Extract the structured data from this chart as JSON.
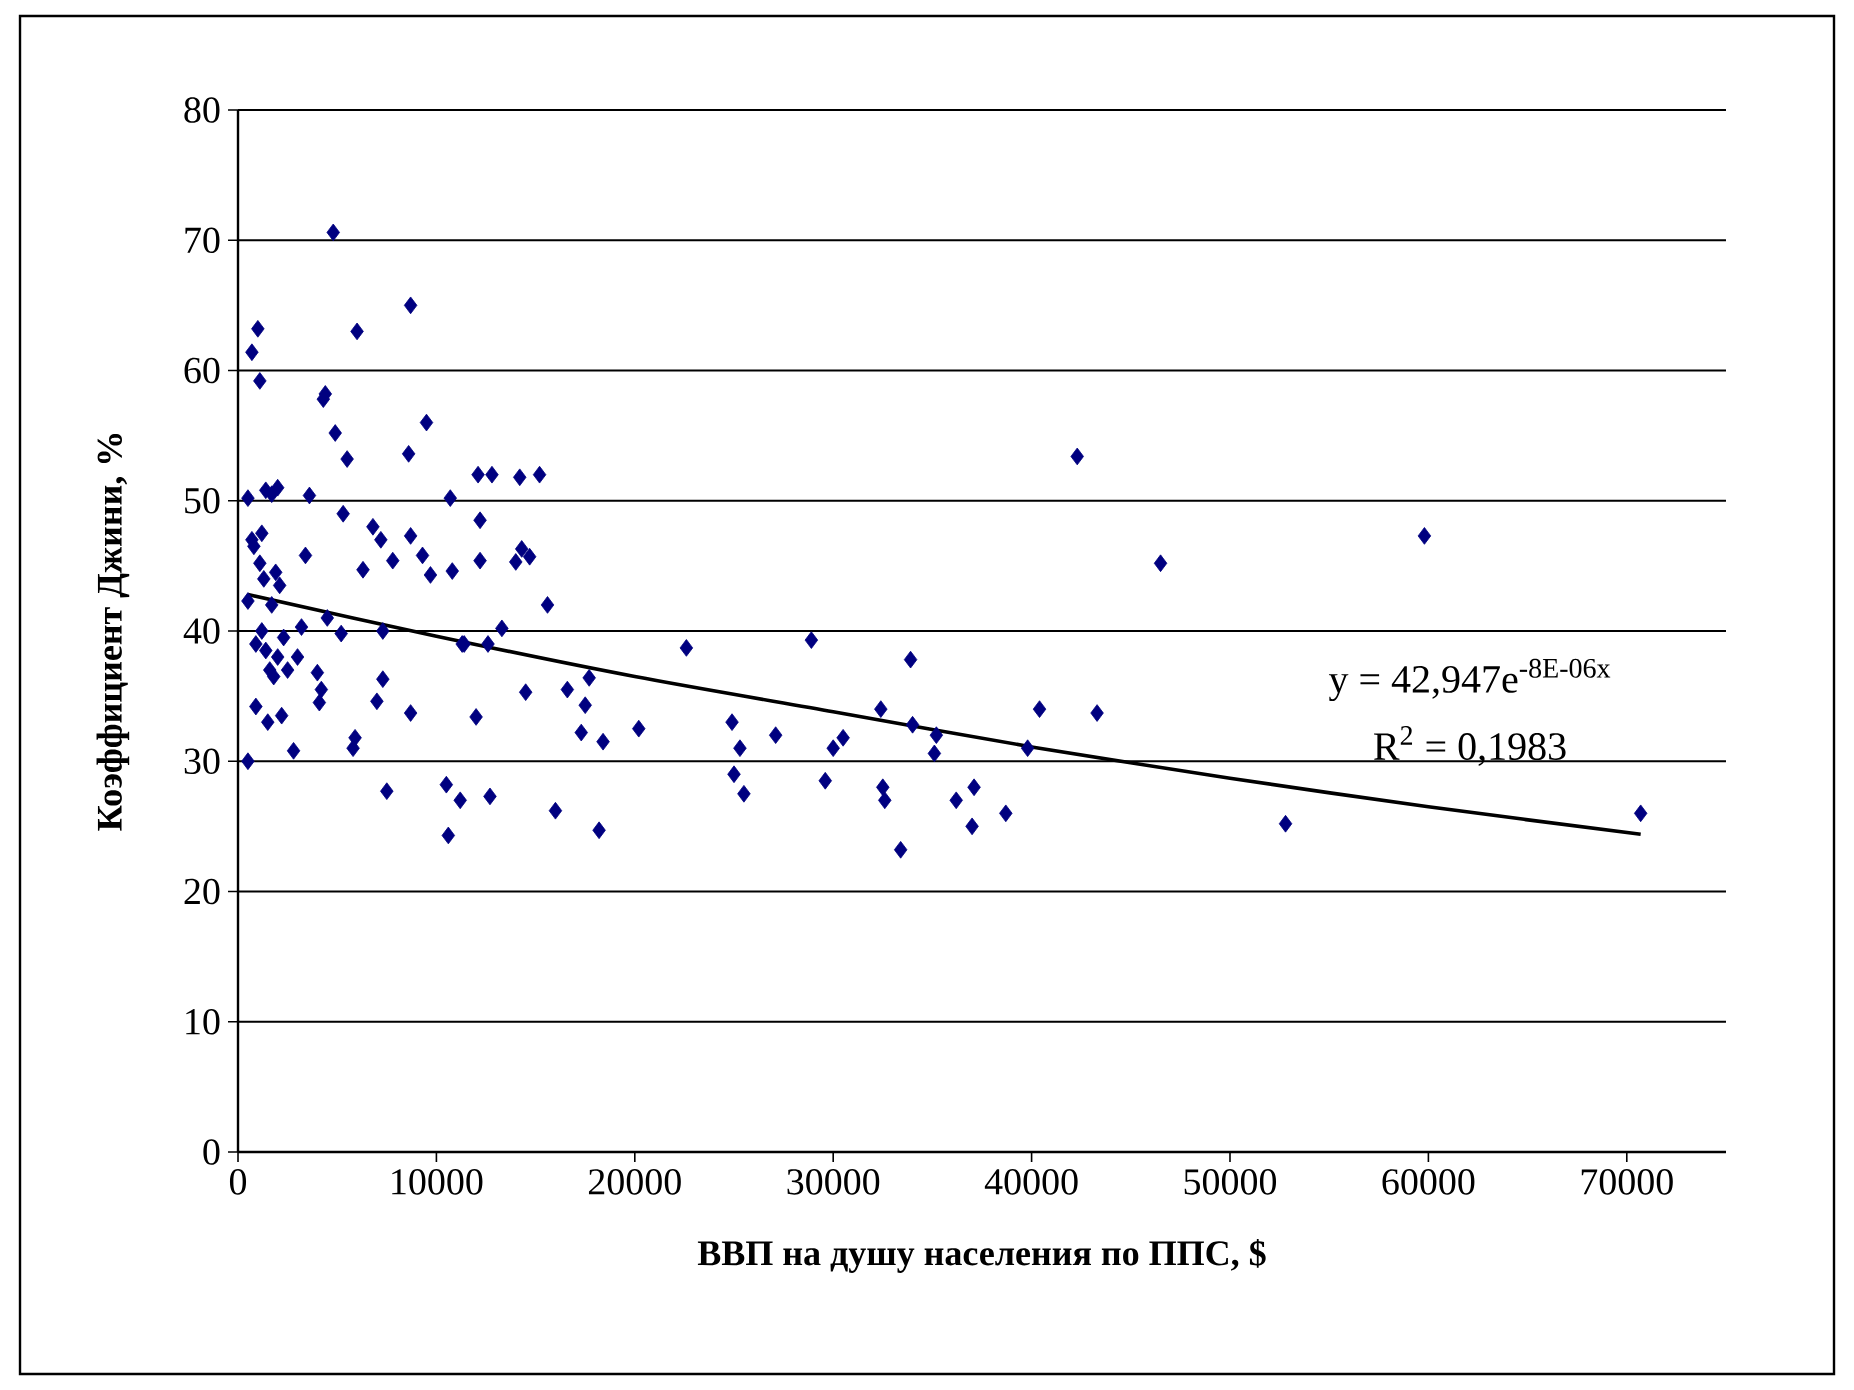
{
  "chart_data": {
    "type": "scatter",
    "xlabel": "ВВП на душу населения по ППС, $",
    "ylabel": "Коэффициент Джини, %",
    "xlim": [
      0,
      75000
    ],
    "ylim": [
      0,
      80
    ],
    "xticks": [
      0,
      10000,
      20000,
      30000,
      40000,
      50000,
      60000,
      70000
    ],
    "yticks": [
      0,
      10,
      20,
      30,
      40,
      50,
      60,
      70,
      80
    ],
    "grid": "y",
    "annotations": [
      "y = 42,947e$^{-8E-06x}$",
      "R$^{2}$ = 0,1983"
    ],
    "series": [
      {
        "marker": "diamond",
        "color": "#000080",
        "x": [
          500,
          500,
          500,
          700,
          700,
          800,
          900,
          900,
          1000,
          1100,
          1100,
          1200,
          1200,
          1300,
          1400,
          1400,
          1500,
          1600,
          1700,
          1700,
          1800,
          1900,
          2000,
          2000,
          2100,
          2200,
          2300,
          2500,
          2800,
          3000,
          3200,
          3400,
          3600,
          4000,
          4100,
          4200,
          4300,
          4400,
          4500,
          4800,
          4900,
          5200,
          5300,
          5500,
          5800,
          5900,
          6000,
          6300,
          6800,
          7000,
          7200,
          7300,
          7300,
          7500,
          7800,
          8600,
          8700,
          8700,
          8700,
          9300,
          9500,
          9700,
          10500,
          10600,
          10700,
          10800,
          11200,
          11300,
          11400,
          12000,
          12100,
          12200,
          12200,
          12600,
          12700,
          12800,
          13300,
          14000,
          14200,
          14300,
          14500,
          14700,
          15200,
          15600,
          16000,
          16600,
          17300,
          17500,
          17700,
          18200,
          18400,
          20200,
          22600,
          24900,
          25000,
          25300,
          25500,
          27100,
          28900,
          29600,
          30000,
          30500,
          32400,
          32500,
          32600,
          33400,
          33900,
          34000,
          35100,
          35200,
          36200,
          37000,
          37100,
          38700,
          39800,
          40400,
          42300,
          43300,
          46500,
          52800,
          59800,
          70700
        ],
        "values": [
          30,
          42.3,
          50.2,
          61.4,
          47,
          46.5,
          39,
          34.2,
          63.2,
          59.2,
          45.2,
          40,
          47.5,
          44,
          50.8,
          38.5,
          33,
          37,
          42,
          50.5,
          36.5,
          44.5,
          51,
          38,
          43.5,
          33.5,
          39.5,
          37,
          30.8,
          38,
          40.3,
          45.8,
          50.4,
          36.8,
          34.5,
          35.5,
          57.8,
          58.2,
          41,
          70.6,
          55.2,
          39.8,
          49,
          53.2,
          31,
          31.8,
          63,
          44.7,
          48,
          34.6,
          47,
          40,
          36.3,
          27.7,
          45.4,
          53.6,
          47.3,
          33.7,
          65,
          45.8,
          56,
          44.3,
          28.2,
          24.3,
          50.2,
          44.6,
          27,
          39,
          39,
          33.4,
          52,
          45.4,
          48.5,
          39,
          27.3,
          52,
          40.2,
          45.3,
          51.8,
          46.3,
          35.3,
          45.7,
          52,
          42,
          26.2,
          35.5,
          32.2,
          34.3,
          36.4,
          24.7,
          31.5,
          32.5,
          38.7,
          33,
          29,
          31,
          27.5,
          32,
          39.3,
          28.5,
          31,
          31.8,
          34,
          28,
          27,
          23.2,
          37.8,
          32.8,
          30.6,
          32,
          27,
          25,
          28,
          26,
          31,
          34,
          53.4,
          33.7,
          45.2,
          25.2,
          47.3,
          26
        ]
      },
      {
        "type": "line",
        "color": "#000000",
        "x": [
          500,
          10000,
          20000,
          30000,
          40000,
          50000,
          60000,
          70700
        ],
        "values": [
          42.8,
          39.6,
          36.5,
          33.8,
          31.1,
          28.7,
          26.5,
          24.4
        ]
      }
    ]
  }
}
